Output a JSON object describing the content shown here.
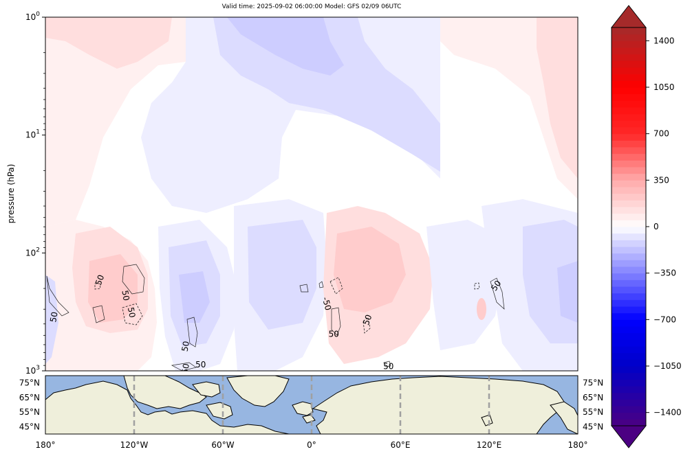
{
  "title": "Valid time: 2025-09-02 06:00:00 Model: GFS 02/09 06UTC",
  "chart_data": {
    "type": "heatmap",
    "title": "Valid time: 2025-09-02 06:00:00 Model: GFS 02/09 06UTC",
    "ylabel": "pressure (hPa)",
    "yscale": "log",
    "ylim": [
      1000,
      1
    ],
    "y_ticks": [
      {
        "value": 1,
        "label": "10^0"
      },
      {
        "value": 10,
        "label": "10^1"
      },
      {
        "value": 100,
        "label": "10^2"
      },
      {
        "value": 1000,
        "label": "10^3"
      }
    ],
    "xlim": [
      -180,
      180
    ],
    "contour_labels": [
      {
        "text": "50",
        "lon": -174,
        "p": 350,
        "rot": -80
      },
      {
        "text": "50",
        "lon": -143,
        "p": 170,
        "rot": -70
      },
      {
        "text": "50",
        "lon": -126,
        "p": 230,
        "rot": 80
      },
      {
        "text": "50",
        "lon": -122,
        "p": 320,
        "rot": 80
      },
      {
        "text": "50",
        "lon": -85,
        "p": 620,
        "rot": -80
      },
      {
        "text": "50",
        "lon": -75,
        "p": 890,
        "rot": 0
      },
      {
        "text": "50",
        "lon": -85,
        "p": 960,
        "rot": -80
      },
      {
        "text": "-50",
        "lon": 10,
        "p": 270,
        "rot": 75
      },
      {
        "text": "50",
        "lon": 15,
        "p": 490,
        "rot": 0
      },
      {
        "text": "50",
        "lon": 38,
        "p": 370,
        "rot": -70
      },
      {
        "text": "50",
        "lon": 52,
        "p": 920,
        "rot": 0
      },
      {
        "text": "50",
        "lon": 125,
        "p": 190,
        "rot": -55
      }
    ]
  },
  "colorbar": {
    "min": -1500,
    "max": 1500,
    "ticks": [
      {
        "value": 1400,
        "label": "1400"
      },
      {
        "value": 1050,
        "label": "1050"
      },
      {
        "value": 700,
        "label": "700"
      },
      {
        "value": 350,
        "label": "350"
      },
      {
        "value": 0,
        "label": "0"
      },
      {
        "value": -350,
        "label": "−350"
      },
      {
        "value": -700,
        "label": "−700"
      },
      {
        "value": -1050,
        "label": "−1050"
      },
      {
        "value": -1400,
        "label": "−1400"
      }
    ]
  },
  "map": {
    "lat_labels": [
      "75°N",
      "65°N",
      "55°N",
      "45°N"
    ],
    "lat_values": [
      75,
      65,
      55,
      45
    ],
    "lat_range": [
      40,
      80
    ],
    "lon_ticks": [
      {
        "value": -180,
        "label": "180°"
      },
      {
        "value": -120,
        "label": "120°W"
      },
      {
        "value": -60,
        "label": "60°W"
      },
      {
        "value": 0,
        "label": "0°"
      },
      {
        "value": 60,
        "label": "60°E"
      },
      {
        "value": 120,
        "label": "120°E"
      },
      {
        "value": 180,
        "label": "180°"
      }
    ],
    "ocean_color": "#97b6e1",
    "land_color": "#efefdb",
    "grid_color": "#a0a0a0"
  },
  "colors": {
    "positive_max": "#a52a2a",
    "negative_max": "#4b0082",
    "red": "#ff0000",
    "blue": "#0000ff"
  }
}
